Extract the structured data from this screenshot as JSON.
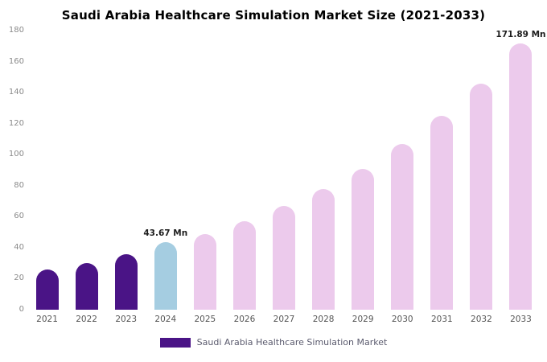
{
  "title": "Saudi Arabia Healthcare Simulation Market Size (2021-2033)",
  "legend": {
    "label": "Saudi Arabia Healthcare Simulation Market",
    "swatch_color": "#4a1486"
  },
  "colors": {
    "historical_bar": "#4a1486",
    "base_year_bar": "#a5cde1",
    "forecast_bar": "#eccaec",
    "axis_text": "#8a8a8a",
    "x_text": "#555555"
  },
  "chart_data": {
    "type": "bar",
    "title": "Saudi Arabia Healthcare Simulation Market Size (2021-2033)",
    "xlabel": "",
    "ylabel": "",
    "categories": [
      "2021",
      "2022",
      "2023",
      "2024",
      "2025",
      "2026",
      "2027",
      "2028",
      "2029",
      "2030",
      "2031",
      "2032",
      "2033"
    ],
    "values": [
      26,
      30,
      36,
      43.67,
      49,
      57,
      67,
      78,
      91,
      107,
      125,
      146,
      171.89
    ],
    "bar_colors": [
      "#4a1486",
      "#4a1486",
      "#4a1486",
      "#a5cde1",
      "#eccaec",
      "#eccaec",
      "#eccaec",
      "#eccaec",
      "#eccaec",
      "#eccaec",
      "#eccaec",
      "#eccaec",
      "#eccaec"
    ],
    "annotations": [
      "",
      "",
      "",
      "43.67 Mn",
      "",
      "",
      "",
      "",
      "",
      "",
      "",
      "",
      "171.89 Mn"
    ],
    "ylim": [
      0,
      180
    ],
    "yticks": [
      0,
      20,
      40,
      60,
      80,
      100,
      120,
      140,
      160,
      180
    ],
    "grid": false,
    "legend_position": "bottom",
    "legend_entries": [
      "Saudi Arabia Healthcare Simulation Market"
    ]
  }
}
